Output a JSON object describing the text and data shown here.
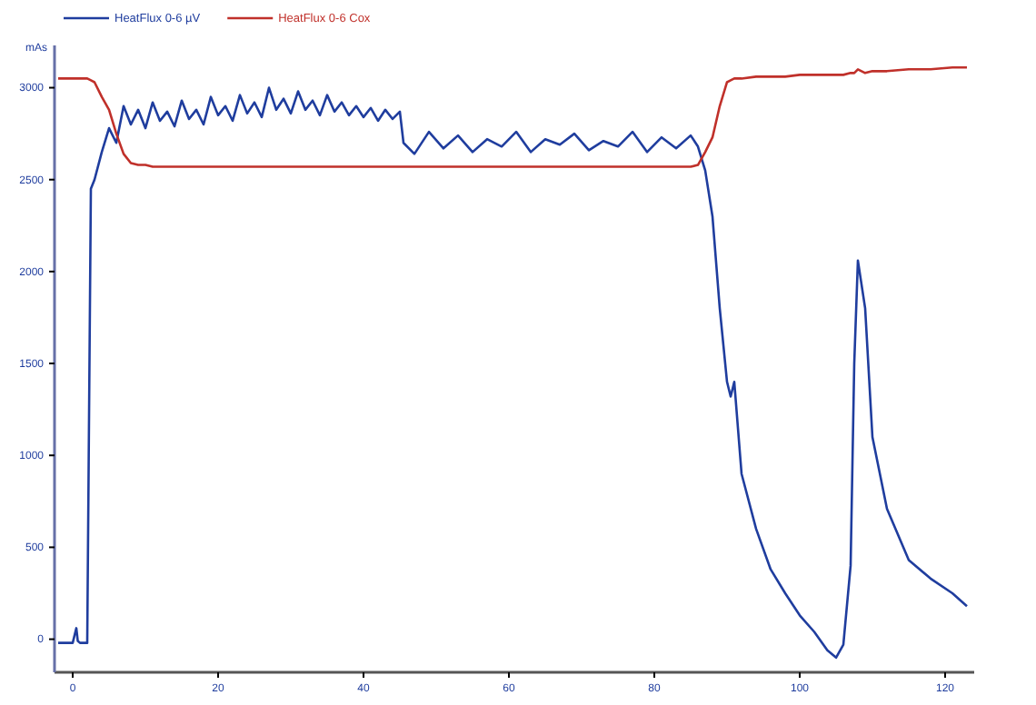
{
  "chart_data": {
    "type": "line",
    "ylabel": "mAs",
    "x": [
      -2,
      -1,
      0,
      0.5,
      0.7,
      1,
      1.5,
      2,
      2.5,
      3,
      4,
      5,
      6,
      7,
      8,
      9,
      10,
      11,
      12,
      13,
      14,
      15,
      16,
      17,
      18,
      19,
      20,
      21,
      22,
      23,
      24,
      25,
      26,
      27,
      28,
      29,
      30,
      31,
      32,
      33,
      34,
      35,
      36,
      37,
      38,
      39,
      40,
      41,
      42,
      43,
      44,
      45,
      45.5,
      47,
      49,
      51,
      53,
      55,
      57,
      59,
      61,
      63,
      65,
      67,
      69,
      71,
      73,
      75,
      77,
      79,
      81,
      83,
      85,
      86,
      87,
      88,
      89,
      90,
      90.5,
      91,
      92,
      94,
      96,
      98,
      100,
      102,
      103.8,
      105,
      106,
      107,
      107.5,
      108,
      109,
      110,
      112,
      115,
      118,
      121,
      123
    ],
    "series": [
      {
        "name": "HeatFlux 0-6 µV",
        "color": "#1f3d9e",
        "values": [
          -20,
          -20,
          -20,
          60,
          -10,
          -20,
          -20,
          -20,
          2450,
          2500,
          2650,
          2780,
          2700,
          2900,
          2800,
          2880,
          2780,
          2920,
          2820,
          2870,
          2790,
          2930,
          2830,
          2880,
          2800,
          2950,
          2850,
          2900,
          2820,
          2960,
          2860,
          2920,
          2840,
          3000,
          2880,
          2940,
          2860,
          2980,
          2880,
          2930,
          2850,
          2960,
          2870,
          2920,
          2850,
          2900,
          2840,
          2890,
          2820,
          2880,
          2830,
          2870,
          2700,
          2640,
          2760,
          2670,
          2740,
          2650,
          2720,
          2680,
          2760,
          2650,
          2720,
          2690,
          2750,
          2660,
          2710,
          2680,
          2760,
          2650,
          2730,
          2670,
          2740,
          2680,
          2550,
          2300,
          1800,
          1400,
          1320,
          1400,
          900,
          600,
          380,
          250,
          130,
          40,
          -60,
          -100,
          -30,
          400,
          1500,
          2060,
          1800,
          1100,
          710,
          430,
          330,
          250,
          180
        ]
      },
      {
        "name": "HeatFlux 0-6 Cox",
        "color": "#c0302a",
        "values": [
          3050,
          3050,
          3050,
          3050,
          3050,
          3050,
          3050,
          3050,
          3040,
          3030,
          2950,
          2880,
          2750,
          2640,
          2590,
          2580,
          2580,
          2570,
          2570,
          2570,
          2570,
          2570,
          2570,
          2570,
          2570,
          2570,
          2570,
          2570,
          2570,
          2570,
          2570,
          2570,
          2570,
          2570,
          2570,
          2570,
          2570,
          2570,
          2570,
          2570,
          2570,
          2570,
          2570,
          2570,
          2570,
          2570,
          2570,
          2570,
          2570,
          2570,
          2570,
          2570,
          2570,
          2570,
          2570,
          2570,
          2570,
          2570,
          2570,
          2570,
          2570,
          2570,
          2570,
          2570,
          2570,
          2570,
          2570,
          2570,
          2570,
          2570,
          2570,
          2570,
          2570,
          2580,
          2650,
          2730,
          2900,
          3030,
          3040,
          3050,
          3050,
          3060,
          3060,
          3060,
          3070,
          3070,
          3070,
          3070,
          3070,
          3080,
          3080,
          3100,
          3080,
          3090,
          3090,
          3100,
          3100,
          3110,
          3110
        ]
      }
    ],
    "xlim": [
      -2.5,
      124
    ],
    "xticks": [
      0,
      20,
      40,
      60,
      80,
      100,
      120
    ],
    "ylim": [
      -180,
      3230
    ],
    "yticks": [
      0,
      500,
      1000,
      1500,
      2000,
      2500,
      3000
    ],
    "grid": false,
    "legend": "top left",
    "marker": "none",
    "line_style": "solid"
  }
}
